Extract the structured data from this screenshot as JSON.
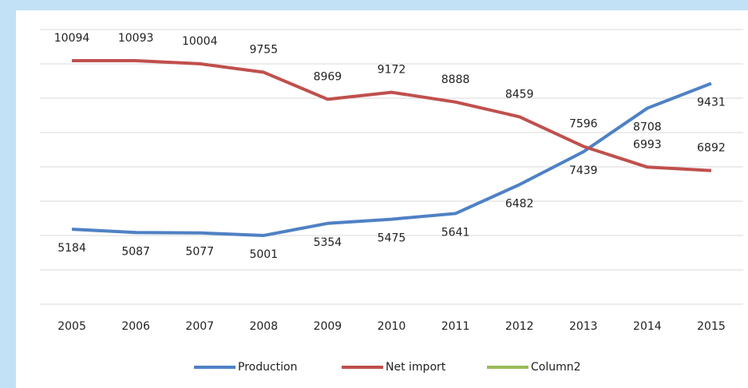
{
  "chart_data": {
    "type": "line",
    "categories": [
      "2005",
      "2006",
      "2007",
      "2008",
      "2009",
      "2010",
      "2011",
      "2012",
      "2013",
      "2014",
      "2015"
    ],
    "series": [
      {
        "name": "Production",
        "color": "#4f81c4",
        "values": [
          5184,
          5087,
          5077,
          5001,
          5354,
          5475,
          5641,
          6482,
          7439,
          8708,
          9431
        ]
      },
      {
        "name": "Net import",
        "color": "#c0504d",
        "values": [
          10094,
          10093,
          10004,
          9755,
          8969,
          9172,
          8888,
          8459,
          7596,
          6993,
          6892
        ]
      },
      {
        "name": "Column2",
        "color": "#9bbb59",
        "values": [
          null,
          null,
          null,
          null,
          null,
          null,
          null,
          null,
          null,
          null,
          null
        ]
      }
    ],
    "ylim": [
      3000,
      11000
    ],
    "yticks": [
      3000,
      4000,
      5000,
      6000,
      7000,
      8000,
      9000,
      10000,
      11000
    ],
    "grid": true
  }
}
